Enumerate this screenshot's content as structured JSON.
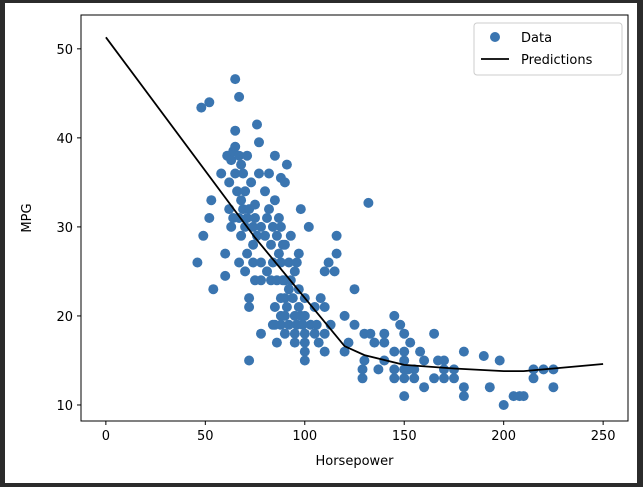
{
  "chart_data": {
    "type": "scatter",
    "title": "",
    "xlabel": "Horsepower",
    "ylabel": "MPG",
    "xlim": [
      -12.5,
      262.5
    ],
    "ylim": [
      8.2,
      53.8
    ],
    "x_ticks": [
      0,
      50,
      100,
      150,
      200,
      250
    ],
    "y_ticks": [
      10,
      20,
      30,
      40,
      50
    ],
    "grid": false,
    "legend": {
      "placement": "top-right",
      "entries": [
        "Data",
        "Predictions"
      ]
    },
    "colors": {
      "data": "#3a75b0",
      "predictions": "#000000"
    },
    "series": [
      {
        "name": "Data",
        "type": "scatter",
        "points": [
          [
            46,
            26
          ],
          [
            48,
            43.4
          ],
          [
            49,
            29
          ],
          [
            52,
            44
          ],
          [
            52,
            31
          ],
          [
            53,
            33
          ],
          [
            54,
            23
          ],
          [
            58,
            36
          ],
          [
            60,
            24.5
          ],
          [
            60,
            27
          ],
          [
            61,
            38
          ],
          [
            62,
            32
          ],
          [
            62,
            35
          ],
          [
            63,
            30
          ],
          [
            63,
            37.5
          ],
          [
            64,
            38.5
          ],
          [
            64,
            31
          ],
          [
            65,
            36
          ],
          [
            65,
            39
          ],
          [
            65,
            40.8
          ],
          [
            65,
            46.6
          ],
          [
            66,
            34
          ],
          [
            67,
            44.6
          ],
          [
            67,
            38
          ],
          [
            67,
            26
          ],
          [
            67,
            31
          ],
          [
            68,
            33
          ],
          [
            68,
            29
          ],
          [
            68,
            37
          ],
          [
            69,
            32
          ],
          [
            69,
            36
          ],
          [
            70,
            34
          ],
          [
            70,
            30
          ],
          [
            70,
            25
          ],
          [
            71,
            27
          ],
          [
            71,
            38
          ],
          [
            71,
            31
          ],
          [
            72,
            22
          ],
          [
            72,
            15
          ],
          [
            72,
            32
          ],
          [
            72,
            21
          ],
          [
            73,
            35
          ],
          [
            74,
            26
          ],
          [
            74,
            28
          ],
          [
            74,
            30
          ],
          [
            75,
            24
          ],
          [
            75,
            32.5
          ],
          [
            75,
            31
          ],
          [
            76,
            29
          ],
          [
            76,
            41.5
          ],
          [
            77,
            39.5
          ],
          [
            77,
            36
          ],
          [
            78,
            24
          ],
          [
            78,
            30
          ],
          [
            78,
            18
          ],
          [
            78,
            26
          ],
          [
            80,
            34
          ],
          [
            80,
            29
          ],
          [
            81,
            31
          ],
          [
            81,
            25
          ],
          [
            82,
            36
          ],
          [
            82,
            32
          ],
          [
            83,
            28
          ],
          [
            83,
            24
          ],
          [
            84,
            19
          ],
          [
            84,
            30
          ],
          [
            84,
            26
          ],
          [
            85,
            33
          ],
          [
            85,
            21
          ],
          [
            85,
            19
          ],
          [
            85,
            38
          ],
          [
            86,
            29
          ],
          [
            86,
            24
          ],
          [
            86,
            17
          ],
          [
            87,
            27
          ],
          [
            87,
            31
          ],
          [
            88,
            20
          ],
          [
            88,
            35.5
          ],
          [
            88,
            22
          ],
          [
            88,
            30
          ],
          [
            88,
            26
          ],
          [
            88,
            19
          ],
          [
            89,
            24
          ],
          [
            89,
            28
          ],
          [
            90,
            28
          ],
          [
            90,
            20
          ],
          [
            90,
            24
          ],
          [
            90,
            35
          ],
          [
            90,
            18
          ],
          [
            90,
            22
          ],
          [
            91,
            37
          ],
          [
            91,
            21
          ],
          [
            92,
            26
          ],
          [
            92,
            23
          ],
          [
            92,
            19
          ],
          [
            93,
            24
          ],
          [
            93,
            29
          ],
          [
            94,
            22
          ],
          [
            95,
            18
          ],
          [
            95,
            20
          ],
          [
            95,
            25
          ],
          [
            95,
            17
          ],
          [
            96,
            26
          ],
          [
            96,
            19
          ],
          [
            97,
            27
          ],
          [
            97,
            23
          ],
          [
            97,
            21
          ],
          [
            98,
            20
          ],
          [
            98,
            32
          ],
          [
            99,
            19
          ],
          [
            100,
            18
          ],
          [
            100,
            22
          ],
          [
            100,
            16
          ],
          [
            100,
            15
          ],
          [
            100,
            17
          ],
          [
            100,
            20
          ],
          [
            102,
            30
          ],
          [
            103,
            19
          ],
          [
            105,
            21
          ],
          [
            105,
            18
          ],
          [
            106,
            19
          ],
          [
            107,
            17
          ],
          [
            108,
            22
          ],
          [
            110,
            18
          ],
          [
            110,
            16
          ],
          [
            110,
            21
          ],
          [
            110,
            25
          ],
          [
            112,
            26
          ],
          [
            113,
            19
          ],
          [
            115,
            25
          ],
          [
            116,
            27
          ],
          [
            116,
            29
          ],
          [
            120,
            16
          ],
          [
            120,
            20
          ],
          [
            122,
            17
          ],
          [
            125,
            19
          ],
          [
            125,
            23
          ],
          [
            129,
            14
          ],
          [
            129,
            13
          ],
          [
            130,
            18
          ],
          [
            130,
            15
          ],
          [
            132,
            32.7
          ],
          [
            133,
            18
          ],
          [
            135,
            17
          ],
          [
            137,
            14
          ],
          [
            140,
            18
          ],
          [
            140,
            15
          ],
          [
            140,
            17
          ],
          [
            145,
            16
          ],
          [
            145,
            20
          ],
          [
            145,
            14
          ],
          [
            145,
            13
          ],
          [
            148,
            19
          ],
          [
            150,
            18
          ],
          [
            150,
            15
          ],
          [
            150,
            14
          ],
          [
            150,
            16
          ],
          [
            150,
            13
          ],
          [
            150,
            11
          ],
          [
            152,
            14
          ],
          [
            153,
            17
          ],
          [
            155,
            13
          ],
          [
            155,
            14
          ],
          [
            158,
            16
          ],
          [
            160,
            12
          ],
          [
            160,
            15
          ],
          [
            165,
            18
          ],
          [
            165,
            13
          ],
          [
            167,
            15
          ],
          [
            170,
            13
          ],
          [
            170,
            14
          ],
          [
            170,
            15
          ],
          [
            175,
            13
          ],
          [
            175,
            14
          ],
          [
            180,
            12
          ],
          [
            180,
            16
          ],
          [
            180,
            11
          ],
          [
            190,
            15.5
          ],
          [
            193,
            12
          ],
          [
            198,
            15
          ],
          [
            200,
            10
          ],
          [
            205,
            11
          ],
          [
            208,
            11
          ],
          [
            210,
            11
          ],
          [
            215,
            13
          ],
          [
            215,
            14
          ],
          [
            220,
            14
          ],
          [
            225,
            14
          ],
          [
            225,
            12
          ]
        ]
      },
      {
        "name": "Predictions",
        "type": "line",
        "points": [
          [
            0,
            51.3
          ],
          [
            75,
            28.8
          ],
          [
            120,
            16.6
          ],
          [
            130,
            15.6
          ],
          [
            150,
            14.5
          ],
          [
            175,
            14.1
          ],
          [
            200,
            13.8
          ],
          [
            210,
            13.8
          ],
          [
            225,
            14.1
          ],
          [
            250,
            14.6
          ]
        ]
      }
    ]
  }
}
